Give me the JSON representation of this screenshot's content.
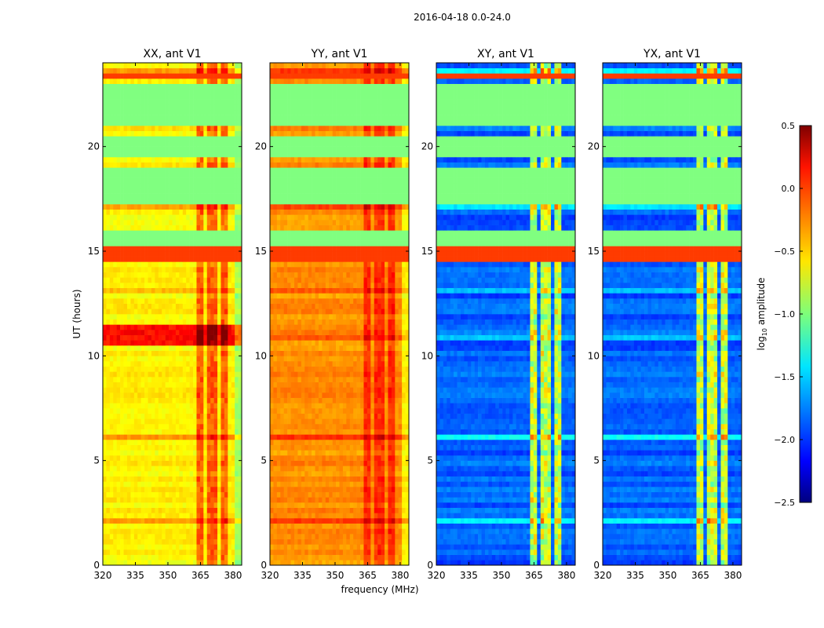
{
  "chart_data": {
    "type": "heatmap",
    "title": "2016-04-18 0.0-24.0",
    "xlabel": "frequency (MHz)",
    "ylabel": "UT (hours)",
    "xlim": [
      320,
      384
    ],
    "ylim": [
      0,
      24
    ],
    "xticks": [
      320,
      335,
      350,
      365,
      380
    ],
    "yticks": [
      0,
      5,
      10,
      15,
      20
    ],
    "colorbar": {
      "label": "log10 amplitude",
      "label_main": "log",
      "label_sub": "10",
      "label_rest": " amplitude",
      "range": [
        -2.5,
        0.5
      ],
      "ticks": [
        "0.5",
        "0.0",
        "−0.5",
        "−1.0",
        "−1.5",
        "−2.0",
        "−2.5"
      ],
      "tick_values": [
        0.5,
        0.0,
        -0.5,
        -1.0,
        -1.5,
        -2.0,
        -2.5
      ],
      "colormap": "jet"
    },
    "panels": [
      {
        "title": "XX, ant V1",
        "base": -0.6,
        "channel_boost": 0.45,
        "hot_band": [
          10.4,
          11.4,
          0.1
        ]
      },
      {
        "title": "YY, ant V1",
        "base": -0.3,
        "channel_boost": 0.3,
        "hot_band": [
          10.4,
          10.6,
          0.0
        ]
      },
      {
        "title": "XY, ant V1",
        "base": -1.85,
        "channel_boost": 1.1,
        "hot_band": [
          10.4,
          10.6,
          0.0
        ]
      },
      {
        "title": "YX, ant V1",
        "base": -1.85,
        "channel_boost": 1.1,
        "hot_band": [
          10.4,
          10.6,
          0.0
        ]
      }
    ],
    "bright_channels_mhz": [
      [
        363,
        366
      ],
      [
        367.5,
        370.5
      ],
      [
        372,
        373
      ],
      [
        374.5,
        378
      ]
    ],
    "flagged_bands_hours": [
      {
        "from": 14.55,
        "to": 15.15,
        "value": -0.05
      },
      {
        "from": 15.15,
        "to": 16.0,
        "value": -1.0
      },
      {
        "from": 17.3,
        "to": 19.1,
        "value": -1.0
      },
      {
        "from": 19.6,
        "to": 20.4,
        "value": -1.0
      },
      {
        "from": 21.0,
        "to": 22.9,
        "value": -1.0
      },
      {
        "from": 23.2,
        "to": 23.4,
        "value": -0.05
      }
    ]
  }
}
